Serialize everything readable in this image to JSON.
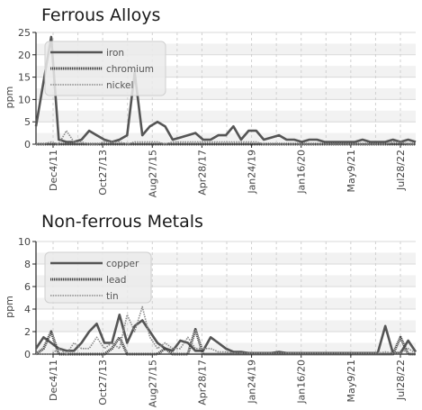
{
  "chart_data": [
    {
      "type": "line",
      "title": "Ferrous Alloys",
      "ylabel": "ppm",
      "ylim": [
        0,
        25
      ],
      "yticks": [
        0,
        5,
        10,
        15,
        20,
        25
      ],
      "xticks": [
        "Dec4/11",
        "Oct27/13",
        "Aug27/15",
        "Apr28/17",
        "Jan24/19",
        "Jan16/20",
        "May9/21",
        "Jul28/22"
      ],
      "grid": true,
      "legend_position": "top-left",
      "series": [
        {
          "name": "iron",
          "color": "#555555",
          "style": "solid",
          "x": [
            0,
            1,
            2,
            3,
            4,
            5,
            6,
            7,
            8,
            9,
            10,
            11,
            12,
            13,
            14,
            15,
            16,
            17,
            18,
            19,
            20,
            21,
            22,
            23,
            24,
            25,
            26,
            27,
            28,
            29,
            30,
            31,
            32,
            33,
            34,
            35,
            36,
            37,
            38,
            39,
            40,
            41,
            42,
            43,
            44,
            45,
            46,
            47,
            48,
            49,
            50
          ],
          "values": [
            4,
            14,
            24,
            1,
            0.5,
            0.5,
            1,
            3,
            2,
            1,
            0.5,
            1,
            2,
            16,
            2,
            4,
            5,
            4,
            1,
            1.5,
            2,
            2.5,
            1,
            1,
            2,
            2,
            4,
            1,
            3,
            3,
            1,
            1.5,
            2,
            1,
            1,
            0.5,
            1,
            1,
            0.5,
            0.5,
            0.5,
            0.5,
            0.5,
            1,
            0.5,
            0.5,
            0.5,
            1,
            0.5,
            1,
            0.5
          ]
        },
        {
          "name": "chromium",
          "color": "#444444",
          "style": "dense-dotted",
          "x": [
            0,
            5,
            10,
            15,
            20,
            25,
            30,
            35,
            40,
            45,
            50
          ],
          "values": [
            0,
            0,
            0,
            0,
            0,
            0,
            0,
            0,
            0,
            0,
            0
          ]
        },
        {
          "name": "nickel",
          "color": "#888888",
          "style": "dotted",
          "x": [
            0,
            1,
            2,
            3,
            4,
            5,
            6,
            7,
            8,
            9,
            10,
            11,
            12,
            13,
            14,
            15,
            16,
            17,
            18,
            19,
            20,
            21,
            22,
            23,
            24,
            25,
            26,
            27,
            28,
            29,
            30,
            31,
            32,
            33,
            34,
            35,
            36,
            37,
            38,
            39,
            40,
            41,
            42,
            43,
            44,
            45,
            46,
            47,
            48,
            49,
            50
          ],
          "values": [
            0,
            0,
            0.5,
            0,
            3,
            0.5,
            0.5,
            0,
            0,
            0.5,
            0.5,
            0.5,
            0,
            0.5,
            0.5,
            0.5,
            0.5,
            0,
            0.5,
            0.5,
            0.5,
            0.5,
            0.5,
            0.5,
            0.5,
            0.5,
            0.5,
            0.5,
            0.5,
            0.5,
            0,
            0,
            0,
            0,
            0,
            0,
            0,
            0,
            0,
            0,
            0,
            0,
            0,
            0,
            0,
            0,
            0,
            0.5,
            0.5,
            0,
            0
          ]
        }
      ]
    },
    {
      "type": "line",
      "title": "Non-ferrous Metals",
      "ylabel": "ppm",
      "ylim": [
        0,
        10
      ],
      "yticks": [
        0,
        2,
        4,
        6,
        8,
        10
      ],
      "xticks": [
        "Dec4/11",
        "Oct27/13",
        "Aug27/15",
        "Apr28/17",
        "Jan24/19",
        "Jan16/20",
        "May9/21",
        "Jul28/22"
      ],
      "grid": true,
      "legend_position": "top-left",
      "series": [
        {
          "name": "copper",
          "color": "#555555",
          "style": "solid",
          "x": [
            0,
            1,
            2,
            3,
            4,
            5,
            6,
            7,
            8,
            9,
            10,
            11,
            12,
            13,
            14,
            15,
            16,
            17,
            18,
            19,
            20,
            21,
            22,
            23,
            24,
            25,
            26,
            27,
            28,
            29,
            30,
            31,
            32,
            33,
            34,
            35,
            36,
            37,
            38,
            39,
            40,
            41,
            42,
            43,
            44,
            45,
            46,
            47,
            48,
            49,
            50
          ],
          "values": [
            0.5,
            1.5,
            1,
            0.5,
            0.3,
            0.3,
            1,
            2,
            2.7,
            1,
            1,
            3.5,
            1,
            2.5,
            3,
            2,
            1,
            0.5,
            0.3,
            1.2,
            1,
            0.3,
            0.3,
            1.5,
            1,
            0.5,
            0.2,
            0.2,
            0.1,
            0.1,
            0.1,
            0.1,
            0.2,
            0.1,
            0.1,
            0.1,
            0.1,
            0.1,
            0.1,
            0.1,
            0.1,
            0.1,
            0.1,
            0.1,
            0.1,
            0.1,
            2.5,
            0.1,
            0.1,
            1.2,
            0.2
          ]
        },
        {
          "name": "lead",
          "color": "#444444",
          "style": "dense-dotted",
          "x": [
            0,
            1,
            2,
            3,
            4,
            5,
            6,
            7,
            8,
            9,
            10,
            11,
            12,
            13,
            14,
            15,
            16,
            17,
            18,
            19,
            20,
            21,
            22,
            23,
            24,
            25,
            26,
            27,
            28,
            29,
            30,
            31,
            32,
            33,
            34,
            35,
            36,
            37,
            38,
            39,
            40,
            41,
            42,
            43,
            44,
            45,
            46,
            47,
            48,
            49,
            50
          ],
          "values": [
            0,
            0.5,
            2,
            0,
            0,
            0,
            0,
            0,
            0,
            0,
            0.5,
            1.5,
            0,
            0,
            0,
            0,
            0,
            0.5,
            0,
            0,
            0,
            2.2,
            0,
            0,
            0,
            0,
            0,
            0,
            0,
            0,
            0,
            0,
            0,
            0,
            0,
            0,
            0,
            0,
            0,
            0,
            0,
            0,
            0,
            0,
            0,
            0,
            0,
            0,
            1.5,
            0,
            0
          ]
        },
        {
          "name": "tin",
          "color": "#888888",
          "style": "dotted",
          "x": [
            0,
            1,
            2,
            3,
            4,
            5,
            6,
            7,
            8,
            9,
            10,
            11,
            12,
            13,
            14,
            15,
            16,
            17,
            18,
            19,
            20,
            21,
            22,
            23,
            24,
            25,
            26,
            27,
            28,
            29,
            30,
            31,
            32,
            33,
            34,
            35,
            36,
            37,
            38,
            39,
            40,
            41,
            42,
            43,
            44,
            45,
            46,
            47,
            48,
            49,
            50
          ],
          "values": [
            0,
            0,
            0,
            0.5,
            0,
            1,
            0.5,
            0.5,
            1.5,
            0.5,
            1,
            0.5,
            3.5,
            2,
            4.2,
            1.5,
            0.5,
            1,
            0.5,
            0.5,
            1.5,
            0.5,
            0.5,
            0.5,
            0.2,
            0.2,
            0.1,
            0.1,
            0.1,
            0.1,
            0.1,
            0.1,
            0.1,
            0.1,
            0.1,
            0.1,
            0.1,
            0.1,
            0.1,
            0.1,
            0.1,
            0.1,
            0.1,
            0.1,
            0.1,
            0.1,
            0.2,
            0.1,
            0.1,
            0.5,
            0.1
          ]
        }
      ]
    }
  ]
}
